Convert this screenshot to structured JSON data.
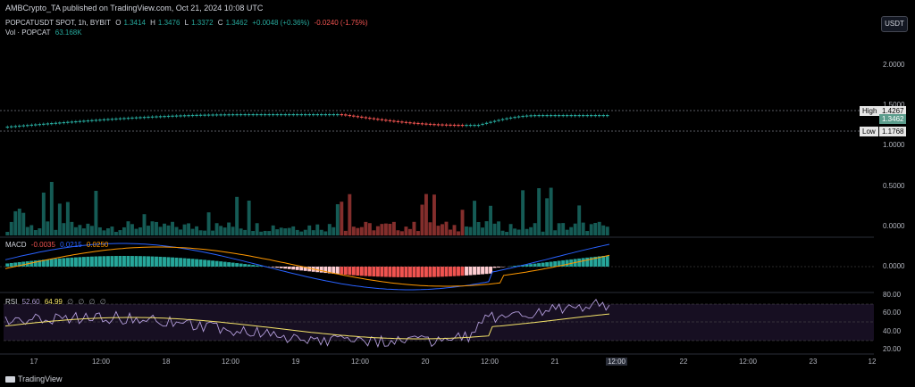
{
  "publish_line": "AMBCrypto_TA published on TradingView.com, Oct 21, 2024 10:08 UTC",
  "ohlc": {
    "symbol": "POPCATUSDT SPOT, 1h, BYBIT",
    "o_label": "O",
    "o": "1.3414",
    "h_label": "H",
    "h": "1.3476",
    "l_label": "L",
    "l": "1.3372",
    "c_label": "C",
    "c": "1.3462",
    "change": "+0.0048 (+0.36%)",
    "change2": "-0.0240 (-1.75%)"
  },
  "volume": {
    "label": "Vol · POPCAT",
    "value": "63.168K"
  },
  "currency_button": "USDT",
  "price_axis": [
    "2.0000",
    "1.5000",
    "1.0000",
    "0.5000",
    "0.0000"
  ],
  "high_tag": {
    "label": "High",
    "value": "1.4267"
  },
  "low_tag": {
    "label": "Low",
    "value": "1.1768"
  },
  "last_price": "1.3462",
  "macd": {
    "label": "MACD",
    "v1": "-0.0035",
    "v2": "0.0215",
    "v3": "0.0250",
    "axis": "0.0000"
  },
  "rsi": {
    "label": "RSI",
    "v1": "52.60",
    "v2": "64.99",
    "v3": "∅",
    "v4": "∅",
    "v5": "∅",
    "v6": "∅",
    "axis": [
      "80.00",
      "60.00",
      "40.00",
      "20.00"
    ]
  },
  "time_axis": [
    "17",
    "12:00",
    "18",
    "12:00",
    "19",
    "12:00",
    "20",
    "12:00",
    "21",
    "12:00",
    "22",
    "12:00",
    "23",
    "12"
  ],
  "footer": "TradingView",
  "colors": {
    "up": "#26a69a",
    "down": "#ef5350",
    "macd": "#2962ff",
    "signal": "#ff9800",
    "rsi": "#b39ddb",
    "rsi_ma": "#f5e46a"
  }
}
